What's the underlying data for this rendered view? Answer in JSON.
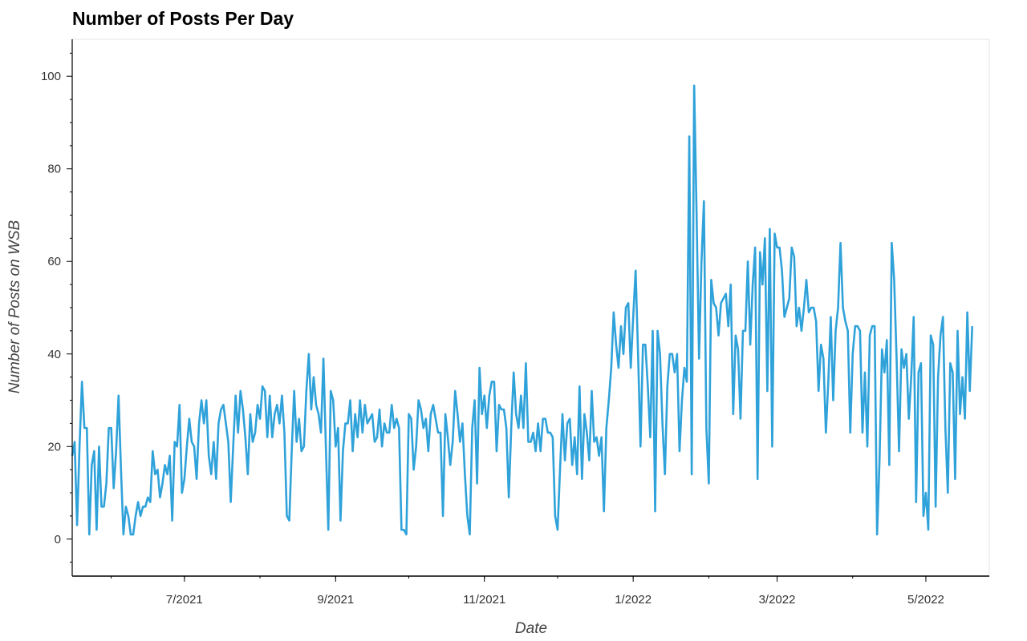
{
  "chart_data": {
    "type": "line",
    "title": "Number of Posts Per Day",
    "xlabel": "Date",
    "ylabel": "Number of Posts on WSB",
    "x_start": "2021-05-16",
    "x_end": "2022-05-27",
    "ylim": [
      -8,
      108
    ],
    "y_ticks": [
      0,
      20,
      40,
      60,
      80,
      100
    ],
    "x_ticks": [
      {
        "date": "2021-07-01",
        "label": "7/2021"
      },
      {
        "date": "2021-09-01",
        "label": "9/2021"
      },
      {
        "date": "2021-11-01",
        "label": "11/2021"
      },
      {
        "date": "2022-01-01",
        "label": "1/2022"
      },
      {
        "date": "2022-03-01",
        "label": "3/2022"
      },
      {
        "date": "2022-05-01",
        "label": "5/2022"
      }
    ],
    "grid": false,
    "line_color": "#30a2da",
    "series": [
      {
        "values": [
          18,
          21,
          3,
          20,
          34,
          24,
          24,
          1,
          16,
          19,
          2,
          20,
          7,
          7,
          12,
          24,
          24,
          11,
          19,
          31,
          15,
          1,
          7,
          5,
          1,
          1,
          5,
          8,
          5,
          7,
          7,
          9,
          8,
          19,
          14,
          15,
          9,
          12,
          16,
          14,
          18,
          4,
          21,
          20,
          29,
          10,
          13,
          20,
          26,
          21,
          20,
          13,
          25,
          30,
          25,
          30,
          18,
          14,
          21,
          13,
          25,
          28,
          29,
          25,
          21,
          8,
          20,
          31,
          23,
          32,
          28,
          22,
          14,
          27,
          21,
          23,
          29,
          26,
          33,
          32,
          22,
          31,
          22,
          27,
          29,
          25,
          31,
          23,
          5,
          4,
          19,
          32,
          21,
          26,
          19,
          20,
          32,
          40,
          28,
          35,
          29,
          27,
          23,
          39,
          20,
          2,
          32,
          30,
          20,
          24,
          4,
          19,
          25,
          25,
          30,
          19,
          27,
          22,
          30,
          23,
          29,
          25,
          26,
          27,
          21,
          22,
          28,
          20,
          25,
          23,
          23,
          29,
          24,
          26,
          24,
          2,
          2,
          1,
          27,
          26,
          15,
          20,
          30,
          28,
          24,
          26,
          19,
          27,
          29,
          26,
          23,
          23,
          5,
          27,
          22,
          16,
          21,
          32,
          27,
          21,
          25,
          14,
          5,
          1,
          24,
          30,
          12,
          37,
          27,
          31,
          24,
          31,
          34,
          34,
          19,
          29,
          28,
          28,
          24,
          9,
          24,
          36,
          27,
          24,
          31,
          24,
          38,
          21,
          21,
          23,
          19,
          25,
          19,
          26,
          26,
          23,
          23,
          22,
          5,
          2,
          15,
          27,
          17,
          25,
          26,
          16,
          22,
          14,
          33,
          13,
          27,
          23,
          17,
          32,
          21,
          22,
          18,
          22,
          6,
          24,
          30,
          37,
          49,
          42,
          37,
          46,
          40,
          50,
          51,
          37,
          48,
          58,
          40,
          20,
          42,
          42,
          33,
          22,
          45,
          6,
          45,
          40,
          25,
          14,
          33,
          40,
          40,
          36,
          40,
          19,
          30,
          37,
          34,
          87,
          14,
          98,
          70,
          39,
          60,
          73,
          24,
          12,
          56,
          51,
          50,
          44,
          51,
          52,
          53,
          46,
          55,
          27,
          44,
          41,
          26,
          45,
          45,
          60,
          42,
          55,
          63,
          13,
          62,
          55,
          65,
          32,
          67,
          20,
          66,
          63,
          63,
          58,
          48,
          50,
          52,
          63,
          61,
          46,
          50,
          45,
          50,
          56,
          49,
          50,
          50,
          47,
          32,
          42,
          39,
          23,
          34,
          48,
          30,
          45,
          50,
          64,
          50,
          47,
          45,
          23,
          40,
          46,
          46,
          45,
          23,
          36,
          20,
          44,
          46,
          46,
          1,
          17,
          41,
          36,
          43,
          16,
          64,
          56,
          39,
          19,
          41,
          37,
          40,
          26,
          35,
          48,
          8,
          36,
          38,
          5,
          10,
          2,
          44,
          42,
          7,
          35,
          44,
          48,
          24,
          10,
          38,
          36,
          13,
          45,
          27,
          35,
          26,
          49,
          32,
          46
        ]
      }
    ]
  }
}
